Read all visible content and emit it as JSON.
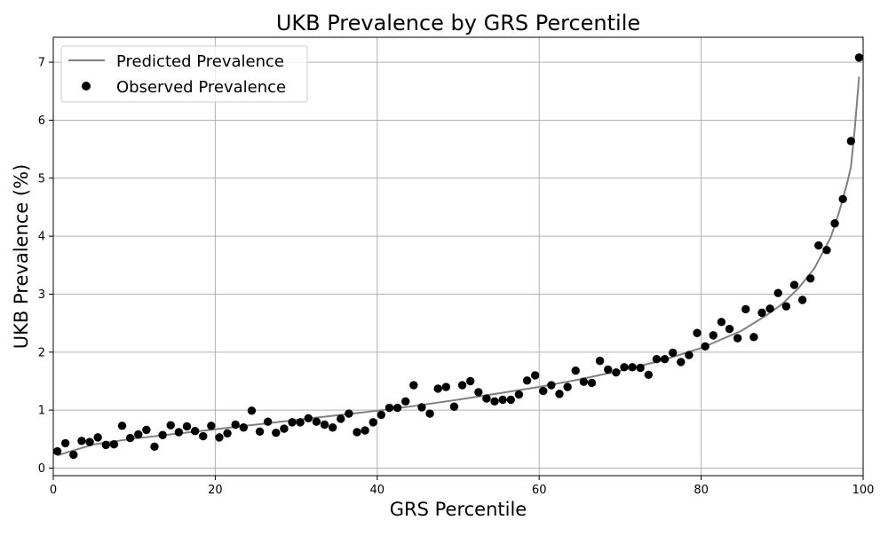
{
  "chart_data": {
    "type": "scatter",
    "title": "UKB Prevalence by GRS Percentile",
    "xlabel": "GRS Percentile",
    "ylabel": "UKB Prevalence (%)",
    "xlim": [
      0,
      100
    ],
    "ylim": [
      -0.13,
      7.43
    ],
    "xticks": [
      0,
      20,
      40,
      60,
      80,
      100
    ],
    "yticks": [
      0,
      1,
      2,
      3,
      4,
      5,
      6,
      7
    ],
    "grid": true,
    "legend_position": "top-left",
    "colors": {
      "predicted": "#808080",
      "observed": "#000000",
      "grid": "#b0b0b0"
    },
    "series": [
      {
        "name": "Predicted Prevalence",
        "kind": "line",
        "x": [
          0.5,
          5,
          10,
          15,
          20,
          25,
          30,
          35,
          40,
          45,
          50,
          55,
          60,
          65,
          70,
          75,
          80,
          85,
          88,
          90,
          92,
          94,
          96,
          97,
          98,
          98.5,
          99,
          99.5
        ],
        "y": [
          0.22,
          0.41,
          0.51,
          0.59,
          0.67,
          0.75,
          0.83,
          0.91,
          0.99,
          1.08,
          1.18,
          1.29,
          1.4,
          1.53,
          1.68,
          1.85,
          2.07,
          2.37,
          2.63,
          2.83,
          3.1,
          3.45,
          3.98,
          4.4,
          4.9,
          5.2,
          5.9,
          6.75
        ]
      },
      {
        "name": "Observed Prevalence",
        "kind": "scatter",
        "x": [
          0.5,
          1.5,
          2.5,
          3.5,
          4.5,
          5.5,
          6.5,
          7.5,
          8.5,
          9.5,
          10.5,
          11.5,
          12.5,
          13.5,
          14.5,
          15.5,
          16.5,
          17.5,
          18.5,
          19.5,
          20.5,
          21.5,
          22.5,
          23.5,
          24.5,
          25.5,
          26.5,
          27.5,
          28.5,
          29.5,
          30.5,
          31.5,
          32.5,
          33.5,
          34.5,
          35.5,
          36.5,
          37.5,
          38.5,
          39.5,
          40.5,
          41.5,
          42.5,
          43.5,
          44.5,
          45.5,
          46.5,
          47.5,
          48.5,
          49.5,
          50.5,
          51.5,
          52.5,
          53.5,
          54.5,
          55.5,
          56.5,
          57.5,
          58.5,
          59.5,
          60.5,
          61.5,
          62.5,
          63.5,
          64.5,
          65.5,
          66.5,
          67.5,
          68.5,
          69.5,
          70.5,
          71.5,
          72.5,
          73.5,
          74.5,
          75.5,
          76.5,
          77.5,
          78.5,
          79.5,
          80.5,
          81.5,
          82.5,
          83.5,
          84.5,
          85.5,
          86.5,
          87.5,
          88.5,
          89.5,
          90.5,
          91.5,
          92.5,
          93.5,
          94.5,
          95.5,
          96.5,
          97.5,
          98.5,
          99.5
        ],
        "y": [
          0.29,
          0.43,
          0.23,
          0.47,
          0.45,
          0.53,
          0.4,
          0.41,
          0.73,
          0.52,
          0.58,
          0.66,
          0.37,
          0.57,
          0.74,
          0.62,
          0.72,
          0.64,
          0.55,
          0.73,
          0.53,
          0.6,
          0.75,
          0.7,
          0.99,
          0.63,
          0.8,
          0.61,
          0.68,
          0.79,
          0.79,
          0.86,
          0.8,
          0.75,
          0.7,
          0.85,
          0.94,
          0.62,
          0.65,
          0.79,
          0.92,
          1.04,
          1.04,
          1.15,
          1.43,
          1.05,
          0.94,
          1.37,
          1.4,
          1.06,
          1.43,
          1.5,
          1.31,
          1.2,
          1.15,
          1.18,
          1.18,
          1.27,
          1.51,
          1.6,
          1.33,
          1.43,
          1.28,
          1.4,
          1.68,
          1.49,
          1.47,
          1.85,
          1.7,
          1.65,
          1.74,
          1.74,
          1.73,
          1.61,
          1.88,
          1.88,
          1.99,
          1.83,
          1.95,
          2.33,
          2.1,
          2.29,
          2.52,
          2.4,
          2.24,
          2.74,
          2.26,
          2.68,
          2.75,
          3.02,
          2.79,
          3.16,
          2.9,
          3.27,
          3.84,
          3.76,
          4.22,
          4.64,
          5.64,
          7.08
        ]
      }
    ]
  }
}
